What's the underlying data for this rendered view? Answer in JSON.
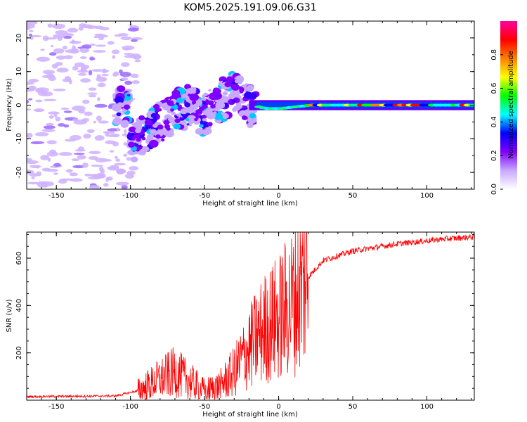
{
  "title": "KOM5.2025.191.09.06.G31",
  "chart_data": [
    {
      "type": "heatmap",
      "xlabel": "Height of straight line (km)",
      "ylabel": "Frequency (Hz)",
      "xlim": [
        -170,
        132
      ],
      "ylim": [
        -25,
        25
      ],
      "x_ticks": [
        -150,
        -100,
        -50,
        0,
        50,
        100
      ],
      "y_ticks": [
        -20,
        -10,
        0,
        10,
        20
      ],
      "colorbar": {
        "label": "Normalized spectral amplitude",
        "range": [
          0,
          1
        ],
        "ticks": [
          0.0,
          0.2,
          0.4,
          0.6,
          0.8
        ],
        "colormap": [
          "#ffffff",
          "#c8a8ff",
          "#8000ff",
          "#0000ff",
          "#00ffff",
          "#00ff00",
          "#ffff00",
          "#ff8000",
          "#ff0000",
          "#ff00a0"
        ]
      },
      "ridge": [
        {
          "x": -100,
          "y": -12
        },
        {
          "x": -90,
          "y": -9
        },
        {
          "x": -80,
          "y": -5
        },
        {
          "x": -70,
          "y": -2
        },
        {
          "x": -60,
          "y": 0
        },
        {
          "x": -50,
          "y": -3
        },
        {
          "x": -40,
          "y": 1
        },
        {
          "x": -30,
          "y": 4
        },
        {
          "x": -20,
          "y": 0
        },
        {
          "x": -10,
          "y": -1
        },
        {
          "x": 0,
          "y": -1
        },
        {
          "x": 20,
          "y": 0
        },
        {
          "x": 50,
          "y": 0
        },
        {
          "x": 100,
          "y": 0
        },
        {
          "x": 132,
          "y": 0
        }
      ]
    },
    {
      "type": "line",
      "xlabel": "Height of straight line (km)",
      "ylabel": "SNR (v/v)",
      "xlim": [
        -170,
        132
      ],
      "ylim": [
        0,
        710
      ],
      "x_ticks": [
        -150,
        -100,
        -50,
        0,
        50,
        100
      ],
      "y_ticks": [
        200,
        400,
        600
      ],
      "color": "#ff0000",
      "trend": [
        {
          "x": -170,
          "y": 15
        },
        {
          "x": -110,
          "y": 18
        },
        {
          "x": -95,
          "y": 40
        },
        {
          "x": -80,
          "y": 90
        },
        {
          "x": -70,
          "y": 120
        },
        {
          "x": -60,
          "y": 80
        },
        {
          "x": -50,
          "y": 40
        },
        {
          "x": -40,
          "y": 60
        },
        {
          "x": -30,
          "y": 120
        },
        {
          "x": -20,
          "y": 220
        },
        {
          "x": -10,
          "y": 300
        },
        {
          "x": 0,
          "y": 350
        },
        {
          "x": 10,
          "y": 420
        },
        {
          "x": 20,
          "y": 520
        },
        {
          "x": 30,
          "y": 590
        },
        {
          "x": 50,
          "y": 630
        },
        {
          "x": 80,
          "y": 660
        },
        {
          "x": 110,
          "y": 680
        },
        {
          "x": 132,
          "y": 690
        }
      ]
    }
  ]
}
